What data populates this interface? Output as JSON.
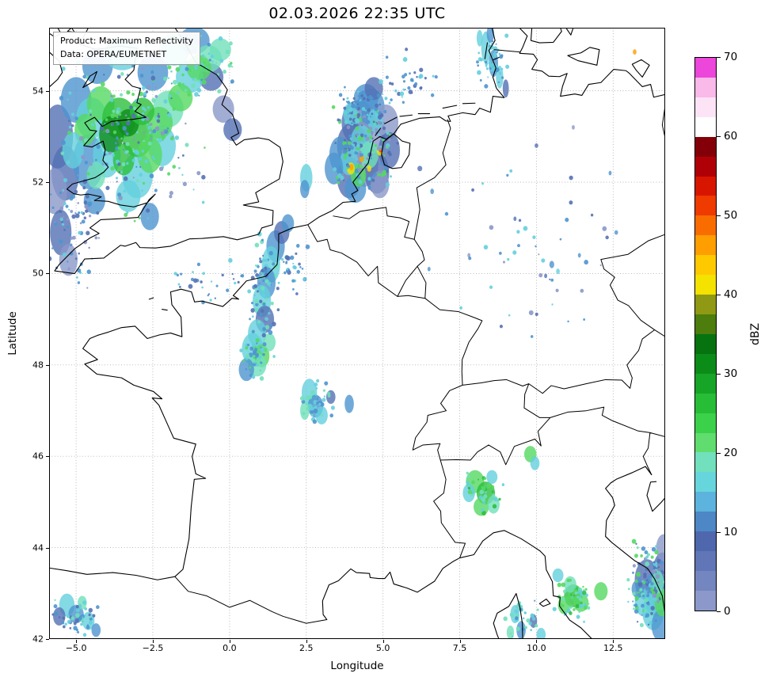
{
  "title": "02.03.2026 22:35 UTC",
  "info_box": {
    "line1": "Product: Maximum Reflectivity",
    "line2": "Data: OPERA/EUMETNET"
  },
  "axes": {
    "xlabel": "Longitude",
    "ylabel": "Latitude",
    "x_ticks": [
      {
        "value": -5.0,
        "label": "−5.0"
      },
      {
        "value": -2.5,
        "label": "−2.5"
      },
      {
        "value": 0.0,
        "label": "0.0"
      },
      {
        "value": 2.5,
        "label": "2.5"
      },
      {
        "value": 5.0,
        "label": "5.0"
      },
      {
        "value": 7.5,
        "label": "7.5"
      },
      {
        "value": 10.0,
        "label": "10.0"
      },
      {
        "value": 12.5,
        "label": "12.5"
      }
    ],
    "y_ticks": [
      {
        "value": 42,
        "label": "42"
      },
      {
        "value": 44,
        "label": "44"
      },
      {
        "value": 46,
        "label": "46"
      },
      {
        "value": 48,
        "label": "48"
      },
      {
        "value": 50,
        "label": "50"
      },
      {
        "value": 52,
        "label": "52"
      },
      {
        "value": 54,
        "label": "54"
      }
    ]
  },
  "colorbar": {
    "label": "dBZ",
    "min": 0,
    "max": 70,
    "segment_step": 2.5,
    "ticks": [
      0,
      10,
      20,
      30,
      40,
      50,
      60,
      70
    ],
    "colors": [
      "#8b98c9",
      "#7486bf",
      "#6076b6",
      "#4f68ad",
      "#4e87c6",
      "#5cb3dd",
      "#67d6dc",
      "#72e0bd",
      "#60dd6e",
      "#3bd14b",
      "#27bd37",
      "#16a526",
      "#0b8c18",
      "#077210",
      "#4c7d0d",
      "#8f9913",
      "#f4e200",
      "#ffc900",
      "#ff9e00",
      "#f96c00",
      "#ef3a00",
      "#d81600",
      "#b00007",
      "#840009",
      "#ffffff",
      "#fce4f6",
      "#f9b9e9",
      "#ed46da"
    ]
  },
  "radar_echoes": {
    "palette": {
      "b0": "#8b98c9",
      "b1": "#5471b4",
      "b2": "#4e95cf",
      "c": "#64cfdd",
      "t": "#70e0ba",
      "g1": "#55d862",
      "g2": "#2cbf3c",
      "g3": "#0d8c1a",
      "y": "#f7e400",
      "o": "#ff9e00",
      "r": "#ef3a00"
    },
    "blobs": [
      [
        -5.6,
        53.0,
        0.5,
        0.7,
        "b1"
      ],
      [
        -5.35,
        52.2,
        0.45,
        0.6,
        "b1"
      ],
      [
        -5.7,
        51.8,
        0.4,
        0.5,
        "b0"
      ],
      [
        -5.5,
        50.9,
        0.35,
        0.5,
        "b1"
      ],
      [
        -5.25,
        50.3,
        0.3,
        0.35,
        "b0"
      ],
      [
        -4.6,
        52.45,
        0.5,
        0.6,
        "b2"
      ],
      [
        -5.0,
        53.8,
        0.5,
        0.5,
        "b2"
      ],
      [
        -4.3,
        54.55,
        0.5,
        0.4,
        "b2"
      ],
      [
        -3.5,
        54.8,
        0.6,
        0.35,
        "c"
      ],
      [
        -2.5,
        54.4,
        0.5,
        0.4,
        "b2"
      ],
      [
        -1.8,
        54.9,
        0.5,
        0.35,
        "c"
      ],
      [
        -1.15,
        55.1,
        0.5,
        0.3,
        "b2"
      ],
      [
        -0.6,
        54.3,
        0.4,
        0.3,
        "b1"
      ],
      [
        -0.2,
        53.6,
        0.35,
        0.3,
        "b0"
      ],
      [
        0.1,
        53.15,
        0.3,
        0.25,
        "b1"
      ],
      [
        -4.5,
        53.4,
        0.5,
        0.45,
        "c"
      ],
      [
        -4.0,
        52.6,
        0.45,
        0.5,
        "c"
      ],
      [
        -3.0,
        52.15,
        0.5,
        0.5,
        "c"
      ],
      [
        -2.2,
        52.8,
        0.45,
        0.45,
        "c"
      ],
      [
        -2.0,
        53.6,
        0.5,
        0.4,
        "t"
      ],
      [
        -1.3,
        54.3,
        0.45,
        0.35,
        "c"
      ],
      [
        -0.7,
        54.7,
        0.45,
        0.3,
        "t"
      ],
      [
        -3.3,
        51.7,
        0.4,
        0.35,
        "c"
      ],
      [
        -4.4,
        51.6,
        0.35,
        0.3,
        "b2"
      ],
      [
        -2.6,
        51.25,
        0.3,
        0.3,
        "b2"
      ],
      [
        -4.2,
        53.7,
        0.45,
        0.4,
        "g1"
      ],
      [
        -3.6,
        53.4,
        0.55,
        0.45,
        "g2"
      ],
      [
        -3.0,
        53.0,
        0.5,
        0.45,
        "g2"
      ],
      [
        -3.85,
        53.05,
        0.4,
        0.4,
        "g3"
      ],
      [
        -3.3,
        53.3,
        0.35,
        0.3,
        "g3"
      ],
      [
        -2.6,
        52.6,
        0.4,
        0.4,
        "g1"
      ],
      [
        -2.3,
        53.3,
        0.45,
        0.35,
        "g1"
      ],
      [
        -1.6,
        53.85,
        0.4,
        0.3,
        "g1"
      ],
      [
        -1.0,
        54.5,
        0.4,
        0.28,
        "g1"
      ],
      [
        -0.3,
        54.9,
        0.35,
        0.25,
        "t"
      ],
      [
        -4.7,
        53.15,
        0.35,
        0.35,
        "g1"
      ],
      [
        -3.45,
        52.5,
        0.35,
        0.35,
        "g2"
      ],
      [
        -2.85,
        53.55,
        0.4,
        0.3,
        "g2"
      ],
      [
        -4.35,
        52.15,
        0.3,
        0.3,
        "t"
      ],
      [
        -5.1,
        52.7,
        0.35,
        0.4,
        "c"
      ],
      [
        4.2,
        53.3,
        0.55,
        0.5,
        "b1"
      ],
      [
        4.6,
        53.0,
        0.5,
        0.5,
        "b0"
      ],
      [
        4.0,
        52.8,
        0.5,
        0.5,
        "b1"
      ],
      [
        4.4,
        52.4,
        0.45,
        0.5,
        "b0"
      ],
      [
        3.9,
        52.1,
        0.4,
        0.45,
        "b1"
      ],
      [
        4.8,
        52.2,
        0.4,
        0.45,
        "b1"
      ],
      [
        4.6,
        53.65,
        0.45,
        0.4,
        "b2"
      ],
      [
        5.1,
        53.3,
        0.4,
        0.4,
        "b0"
      ],
      [
        3.6,
        52.6,
        0.35,
        0.4,
        "b2"
      ],
      [
        5.2,
        52.7,
        0.35,
        0.4,
        "b1"
      ],
      [
        4.1,
        51.85,
        0.35,
        0.3,
        "b2"
      ],
      [
        4.9,
        51.95,
        0.3,
        0.3,
        "b0"
      ],
      [
        4.3,
        52.9,
        0.35,
        0.35,
        "c"
      ],
      [
        3.9,
        52.45,
        0.3,
        0.3,
        "c"
      ],
      [
        4.55,
        52.6,
        0.3,
        0.3,
        "t"
      ],
      [
        4.2,
        52.15,
        0.25,
        0.25,
        "g1"
      ],
      [
        4.0,
        53.5,
        0.3,
        0.25,
        "c"
      ],
      [
        4.75,
        53.35,
        0.25,
        0.25,
        "c"
      ],
      [
        4.45,
        53.85,
        0.4,
        0.3,
        "b2"
      ],
      [
        4.7,
        54.05,
        0.3,
        0.25,
        "b1"
      ],
      [
        3.4,
        52.3,
        0.3,
        0.35,
        "b2"
      ],
      [
        2.5,
        52.1,
        0.2,
        0.3,
        "c"
      ],
      [
        2.45,
        51.85,
        0.15,
        0.2,
        "b2"
      ],
      [
        3.95,
        52.3,
        0.13,
        0.13,
        "y"
      ],
      [
        3.97,
        52.33,
        0.07,
        0.07,
        "o"
      ],
      [
        4.9,
        52.68,
        0.1,
        0.1,
        "y"
      ],
      [
        4.92,
        52.7,
        0.05,
        0.05,
        "r"
      ],
      [
        4.3,
        52.52,
        0.08,
        0.08,
        "o"
      ],
      [
        4.55,
        52.3,
        0.07,
        0.07,
        "y"
      ],
      [
        1.5,
        50.6,
        0.3,
        0.35,
        "b2"
      ],
      [
        1.35,
        50.2,
        0.3,
        0.4,
        "c"
      ],
      [
        1.2,
        49.8,
        0.3,
        0.35,
        "b2"
      ],
      [
        1.05,
        49.4,
        0.3,
        0.35,
        "c"
      ],
      [
        1.15,
        49.0,
        0.3,
        0.3,
        "b1"
      ],
      [
        0.9,
        48.7,
        0.3,
        0.3,
        "c"
      ],
      [
        0.75,
        48.35,
        0.35,
        0.35,
        "c"
      ],
      [
        1.05,
        48.2,
        0.25,
        0.25,
        "g1"
      ],
      [
        0.9,
        48.0,
        0.3,
        0.25,
        "t"
      ],
      [
        0.55,
        47.9,
        0.25,
        0.25,
        "b2"
      ],
      [
        1.3,
        48.5,
        0.2,
        0.2,
        "t"
      ],
      [
        1.7,
        50.9,
        0.25,
        0.25,
        "b1"
      ],
      [
        1.9,
        51.1,
        0.2,
        0.2,
        "b2"
      ],
      [
        2.6,
        47.4,
        0.25,
        0.3,
        "c"
      ],
      [
        2.8,
        47.1,
        0.25,
        0.25,
        "b2"
      ],
      [
        3.0,
        46.9,
        0.2,
        0.2,
        "c"
      ],
      [
        2.45,
        47.0,
        0.15,
        0.2,
        "t"
      ],
      [
        3.3,
        47.3,
        0.15,
        0.15,
        "b1"
      ],
      [
        3.9,
        47.15,
        0.15,
        0.2,
        "b2"
      ],
      [
        8.0,
        45.45,
        0.3,
        0.25,
        "g1"
      ],
      [
        8.35,
        45.2,
        0.3,
        0.25,
        "g2"
      ],
      [
        8.2,
        44.9,
        0.25,
        0.2,
        "g1"
      ],
      [
        8.6,
        44.95,
        0.2,
        0.2,
        "t"
      ],
      [
        7.8,
        45.2,
        0.2,
        0.2,
        "c"
      ],
      [
        9.8,
        46.05,
        0.2,
        0.18,
        "g1"
      ],
      [
        9.95,
        45.85,
        0.15,
        0.15,
        "c"
      ],
      [
        8.55,
        45.55,
        0.18,
        0.15,
        "c"
      ],
      [
        11.2,
        42.95,
        0.3,
        0.25,
        "g2"
      ],
      [
        11.45,
        42.8,
        0.25,
        0.2,
        "g1"
      ],
      [
        10.9,
        42.75,
        0.2,
        0.2,
        "g1"
      ],
      [
        11.1,
        43.2,
        0.2,
        0.18,
        "t"
      ],
      [
        10.7,
        43.4,
        0.18,
        0.15,
        "c"
      ],
      [
        12.1,
        43.05,
        0.22,
        0.2,
        "g1"
      ],
      [
        13.6,
        43.3,
        0.4,
        0.45,
        "b1"
      ],
      [
        13.9,
        43.0,
        0.4,
        0.5,
        "b2"
      ],
      [
        14.1,
        43.5,
        0.3,
        0.4,
        "b1"
      ],
      [
        13.8,
        42.6,
        0.35,
        0.4,
        "c"
      ],
      [
        14.05,
        42.3,
        0.3,
        0.35,
        "b2"
      ],
      [
        13.5,
        42.8,
        0.3,
        0.3,
        "c"
      ],
      [
        14.1,
        42.8,
        0.25,
        0.3,
        "g1"
      ],
      [
        13.95,
        43.25,
        0.2,
        0.25,
        "t"
      ],
      [
        14.15,
        44.0,
        0.25,
        0.3,
        "b0"
      ],
      [
        13.3,
        43.1,
        0.2,
        0.2,
        "b2"
      ],
      [
        9.3,
        42.55,
        0.15,
        0.2,
        "c"
      ],
      [
        9.5,
        42.2,
        0.15,
        0.2,
        "b2"
      ],
      [
        9.15,
        42.15,
        0.12,
        0.15,
        "t"
      ],
      [
        9.9,
        42.4,
        0.12,
        0.15,
        "b1"
      ],
      [
        10.15,
        42.1,
        0.15,
        0.15,
        "c"
      ],
      [
        -5.3,
        42.75,
        0.25,
        0.25,
        "c"
      ],
      [
        -5.0,
        42.55,
        0.25,
        0.2,
        "b2"
      ],
      [
        -4.6,
        42.4,
        0.2,
        0.2,
        "c"
      ],
      [
        -5.55,
        42.5,
        0.2,
        0.2,
        "b1"
      ],
      [
        -4.8,
        42.8,
        0.15,
        0.15,
        "t"
      ],
      [
        -4.35,
        42.2,
        0.15,
        0.15,
        "b2"
      ],
      [
        8.35,
        54.95,
        0.15,
        0.35,
        "c"
      ],
      [
        8.6,
        54.6,
        0.15,
        0.3,
        "b2"
      ],
      [
        8.8,
        54.3,
        0.12,
        0.25,
        "c"
      ],
      [
        8.5,
        55.25,
        0.12,
        0.2,
        "b2"
      ],
      [
        9.0,
        54.05,
        0.1,
        0.2,
        "b1"
      ],
      [
        8.15,
        55.15,
        0.1,
        0.18,
        "c"
      ],
      [
        13.2,
        54.85,
        0.06,
        0.06,
        "o"
      ],
      [
        10.5,
        50.2,
        0.08,
        0.08,
        "b2"
      ],
      [
        10.7,
        50.05,
        0.06,
        0.06,
        "c"
      ],
      [
        10.3,
        49.95,
        0.05,
        0.05,
        "b1"
      ],
      [
        11.4,
        50.4,
        0.05,
        0.05,
        "b2"
      ],
      [
        9.3,
        51.2,
        0.05,
        0.05,
        "b1"
      ],
      [
        12.6,
        50.9,
        0.06,
        0.05,
        "b2"
      ],
      [
        7.8,
        50.4,
        0.05,
        0.05,
        "b0"
      ],
      [
        6.5,
        50.1,
        0.05,
        0.05,
        "b2"
      ],
      [
        10.0,
        52.8,
        0.06,
        0.05,
        "b1"
      ],
      [
        11.2,
        53.2,
        0.05,
        0.05,
        "b0"
      ],
      [
        12.4,
        52.2,
        0.05,
        0.05,
        "b2"
      ],
      [
        6.2,
        52.3,
        0.08,
        0.06,
        "b1"
      ],
      [
        6.6,
        51.8,
        0.06,
        0.06,
        "b2"
      ]
    ],
    "speckle": [
      {
        "lon": -3.2,
        "lat": 53.2,
        "dlon": 2.6,
        "dlat": 2.1,
        "n": 240,
        "seed": 11,
        "keys": [
          "b0",
          "b1",
          "b2",
          "c",
          "c",
          "t",
          "g1"
        ]
      },
      {
        "lon": -5.0,
        "lat": 51.0,
        "dlon": 1.0,
        "dlat": 1.6,
        "n": 80,
        "seed": 12,
        "keys": [
          "b0",
          "b1",
          "b2",
          "c"
        ]
      },
      {
        "lon": -0.9,
        "lat": 54.6,
        "dlon": 1.3,
        "dlat": 0.8,
        "n": 70,
        "seed": 13,
        "keys": [
          "b2",
          "c",
          "t",
          "g1"
        ]
      },
      {
        "lon": 4.4,
        "lat": 52.8,
        "dlon": 1.1,
        "dlat": 1.1,
        "n": 160,
        "seed": 14,
        "keys": [
          "b0",
          "b1",
          "b2",
          "c",
          "g1"
        ]
      },
      {
        "lon": 4.3,
        "lat": 53.6,
        "dlon": 0.9,
        "dlat": 0.5,
        "n": 60,
        "seed": 15,
        "keys": [
          "b1",
          "b2",
          "c"
        ]
      },
      {
        "lon": 1.1,
        "lat": 49.6,
        "dlon": 0.55,
        "dlat": 1.3,
        "n": 80,
        "seed": 16,
        "keys": [
          "b1",
          "b2",
          "c",
          "t"
        ]
      },
      {
        "lon": 0.9,
        "lat": 48.2,
        "dlon": 0.6,
        "dlat": 0.6,
        "n": 50,
        "seed": 17,
        "keys": [
          "b2",
          "c",
          "t",
          "g1"
        ]
      },
      {
        "lon": 2.8,
        "lat": 47.2,
        "dlon": 0.6,
        "dlat": 0.5,
        "n": 40,
        "seed": 18,
        "keys": [
          "b2",
          "c",
          "t"
        ]
      },
      {
        "lon": 8.3,
        "lat": 45.2,
        "dlon": 0.8,
        "dlat": 0.5,
        "n": 40,
        "seed": 19,
        "keys": [
          "c",
          "t",
          "g1",
          "g2"
        ]
      },
      {
        "lon": 13.6,
        "lat": 43.2,
        "dlon": 0.65,
        "dlat": 1.0,
        "n": 110,
        "seed": 20,
        "keys": [
          "b0",
          "b1",
          "b2",
          "c",
          "t",
          "g1"
        ]
      },
      {
        "lon": 11.2,
        "lat": 42.9,
        "dlon": 0.7,
        "dlat": 0.55,
        "n": 55,
        "seed": 21,
        "keys": [
          "c",
          "t",
          "g1",
          "g2"
        ]
      },
      {
        "lon": -4.9,
        "lat": 42.5,
        "dlon": 0.9,
        "dlat": 0.45,
        "n": 45,
        "seed": 22,
        "keys": [
          "b1",
          "b2",
          "c",
          "t"
        ]
      },
      {
        "lon": 8.6,
        "lat": 54.6,
        "dlon": 0.6,
        "dlat": 0.75,
        "n": 50,
        "seed": 23,
        "keys": [
          "b2",
          "c"
        ]
      },
      {
        "lon": 10.0,
        "lat": 50.5,
        "dlon": 3.5,
        "dlat": 2.5,
        "n": 45,
        "seed": 24,
        "keys": [
          "b0",
          "b1",
          "b2",
          "c"
        ]
      },
      {
        "lon": -0.5,
        "lat": 49.8,
        "dlon": 1.4,
        "dlat": 0.6,
        "n": 30,
        "seed": 25,
        "keys": [
          "b1",
          "b2",
          "c"
        ]
      },
      {
        "lon": 9.5,
        "lat": 42.5,
        "dlon": 0.6,
        "dlat": 0.5,
        "n": 35,
        "seed": 26,
        "keys": [
          "b2",
          "c",
          "t"
        ]
      },
      {
        "lon": 5.9,
        "lat": 54.3,
        "dlon": 1.2,
        "dlat": 0.7,
        "n": 40,
        "seed": 27,
        "keys": [
          "b1",
          "b2",
          "c"
        ]
      },
      {
        "lon": 2.1,
        "lat": 50.0,
        "dlon": 0.5,
        "dlat": 0.9,
        "n": 30,
        "seed": 28,
        "keys": [
          "b1",
          "b2",
          "c"
        ]
      }
    ]
  }
}
